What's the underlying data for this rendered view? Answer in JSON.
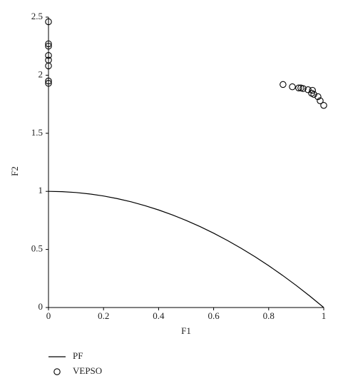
{
  "chart_data": {
    "type": "scatter",
    "x_label": "F1",
    "y_label": "F2",
    "xlim": [
      0,
      1
    ],
    "ylim": [
      0,
      2.5
    ],
    "xticks": [
      0,
      0.2,
      0.4,
      0.6,
      0.8,
      1
    ],
    "yticks": [
      0,
      0.5,
      1,
      1.5,
      2,
      2.5
    ],
    "series": [
      {
        "name": "PF",
        "type": "line",
        "color": "#000000",
        "x": [
          0,
          0.05,
          0.1,
          0.15,
          0.2,
          0.25,
          0.3,
          0.35,
          0.4,
          0.45,
          0.5,
          0.55,
          0.6,
          0.65,
          0.7,
          0.75,
          0.8,
          0.85,
          0.9,
          0.95,
          1
        ],
        "values": [
          1,
          0.9975,
          0.99,
          0.9775,
          0.96,
          0.9375,
          0.91,
          0.8775,
          0.84,
          0.7975,
          0.75,
          0.6975,
          0.64,
          0.5775,
          0.51,
          0.4375,
          0.36,
          0.2775,
          0.19,
          0.0975,
          0
        ]
      },
      {
        "name": "VEPSO",
        "type": "scatter",
        "color": "#000000",
        "x": [
          0,
          0,
          0,
          0,
          0,
          0,
          0,
          0,
          0.852,
          0.886,
          0.909,
          0.917,
          0.925,
          0.943,
          0.959,
          0.956,
          0.964,
          0.979,
          0.987,
          1.0
        ],
        "values": [
          2.46,
          2.27,
          2.25,
          2.17,
          2.13,
          2.08,
          1.95,
          1.93,
          1.92,
          1.9,
          1.89,
          1.89,
          1.885,
          1.875,
          1.87,
          1.845,
          1.835,
          1.815,
          1.78,
          1.74
        ]
      }
    ]
  }
}
